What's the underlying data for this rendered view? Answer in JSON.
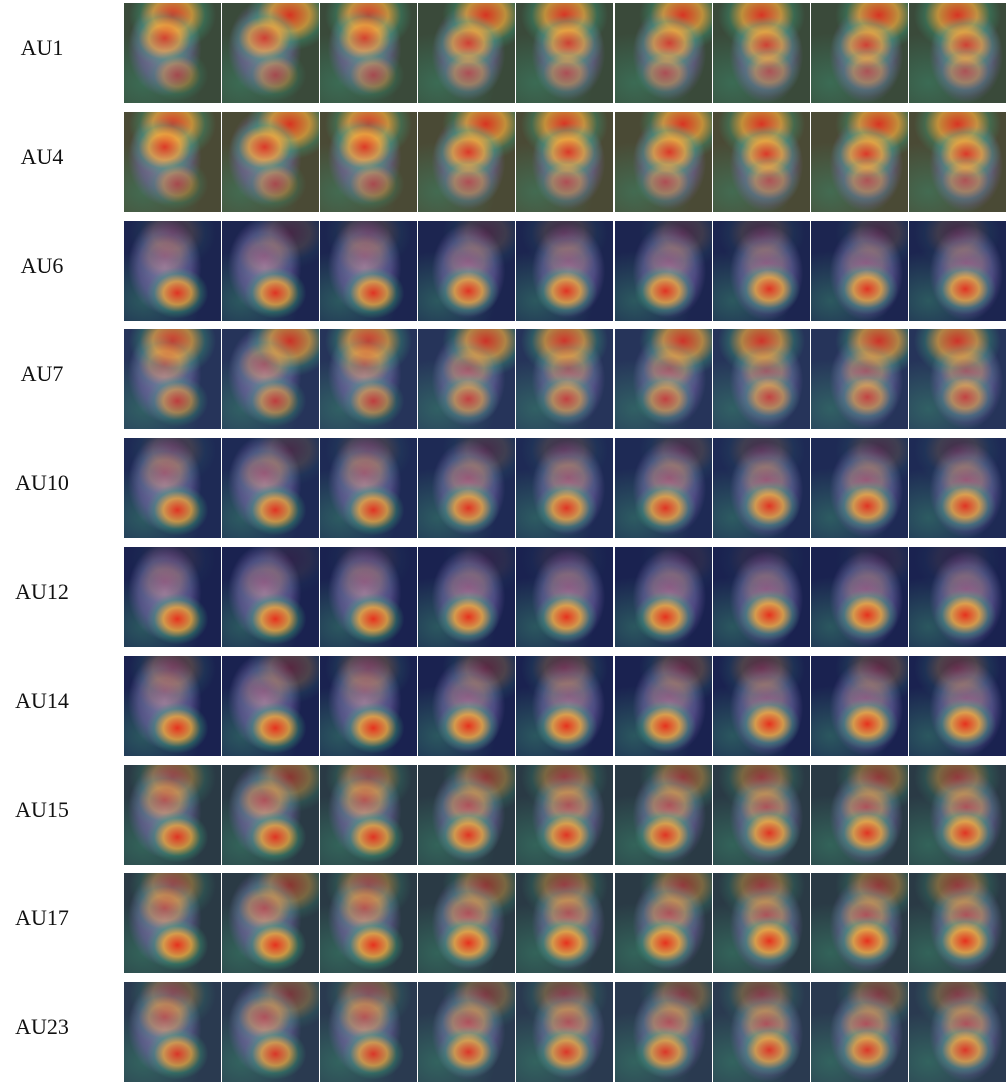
{
  "rows": [
    "AU1",
    "AU4",
    "AU6",
    "AU7",
    "AU10",
    "AU12",
    "AU14",
    "AU15",
    "AU17",
    "AU23"
  ]
}
